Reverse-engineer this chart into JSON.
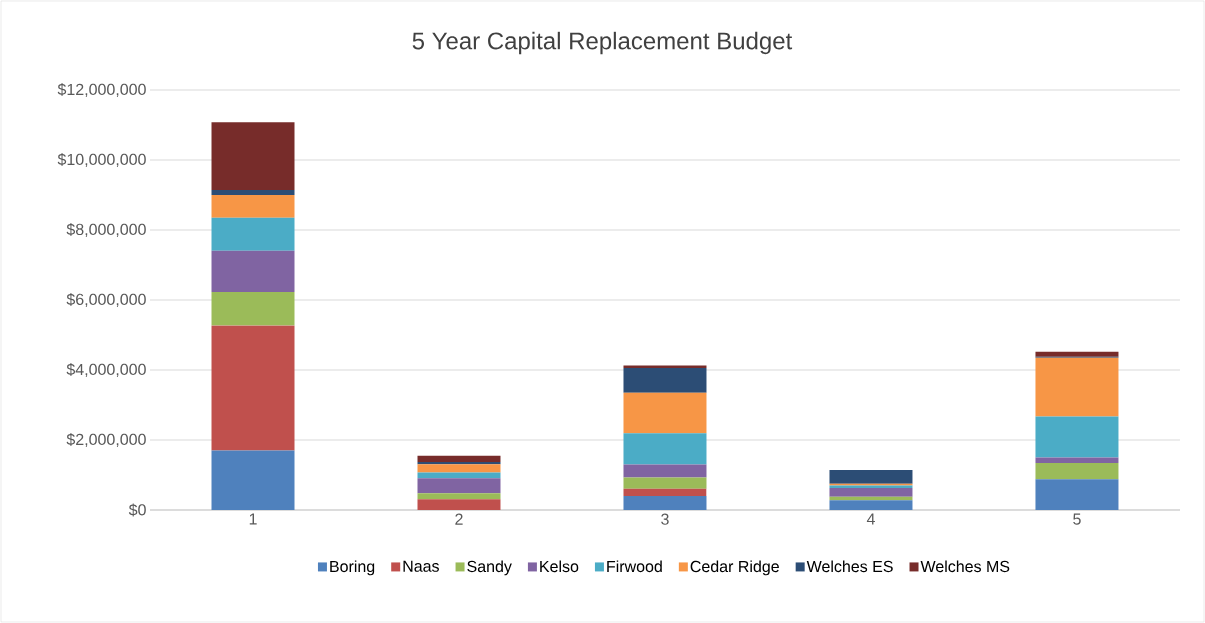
{
  "chart_data": {
    "type": "bar",
    "stacked": true,
    "title": "5 Year Capital Replacement Budget",
    "categories": [
      "1",
      "2",
      "3",
      "4",
      "5"
    ],
    "series": [
      {
        "name": "Boring",
        "color": "#4f81bd",
        "values": [
          1700000,
          0,
          400000,
          280000,
          880000
        ]
      },
      {
        "name": "Naas",
        "color": "#c0504d",
        "values": [
          3570000,
          310000,
          210000,
          0,
          0
        ]
      },
      {
        "name": "Sandy",
        "color": "#9bbb59",
        "values": [
          960000,
          170000,
          320000,
          100000,
          460000
        ]
      },
      {
        "name": "Kelso",
        "color": "#8064a2",
        "values": [
          1180000,
          430000,
          370000,
          250000,
          160000
        ]
      },
      {
        "name": "Firwood",
        "color": "#4bacc6",
        "values": [
          940000,
          160000,
          890000,
          70000,
          1170000
        ]
      },
      {
        "name": "Cedar Ridge",
        "color": "#f79646",
        "values": [
          650000,
          240000,
          1160000,
          50000,
          1680000
        ]
      },
      {
        "name": "Welches ES",
        "color": "#2c4d75",
        "values": [
          140000,
          60000,
          710000,
          390000,
          30000
        ]
      },
      {
        "name": "Welches MS",
        "color": "#772c2a",
        "values": [
          1940000,
          180000,
          70000,
          0,
          140000
        ]
      }
    ],
    "ylim": [
      0,
      12000000
    ],
    "yticks": [
      {
        "value": 0,
        "label": "$0"
      },
      {
        "value": 2000000,
        "label": "$2,000,000"
      },
      {
        "value": 4000000,
        "label": "$4,000,000"
      },
      {
        "value": 6000000,
        "label": "$6,000,000"
      },
      {
        "value": 8000000,
        "label": "$8,000,000"
      },
      {
        "value": 10000000,
        "label": "$10,000,000"
      },
      {
        "value": 12000000,
        "label": "$12,000,000"
      }
    ],
    "grid": "y",
    "legend": "bottom"
  }
}
